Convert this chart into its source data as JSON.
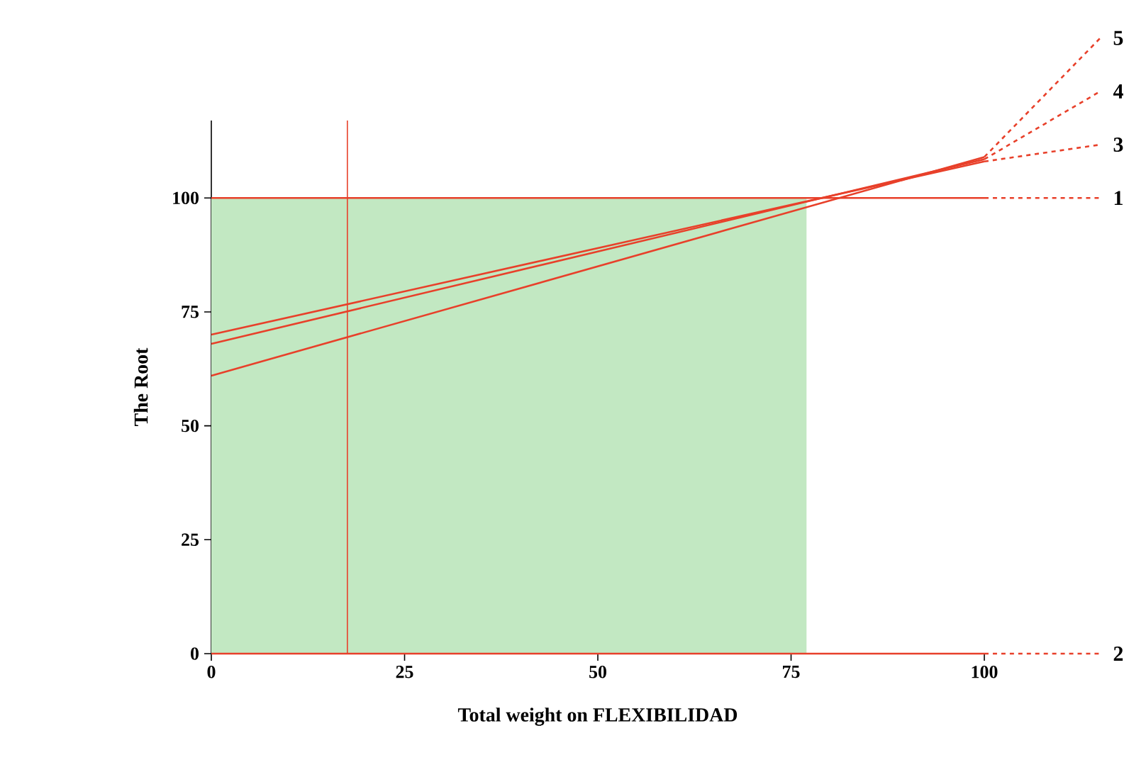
{
  "chart_data": {
    "type": "line",
    "xlabel": "Total weight on FLEXIBILIDAD",
    "ylabel": "The Root",
    "x": [
      0,
      100
    ],
    "series": [
      {
        "name": "1",
        "color": "#e8402a",
        "values": [
          100,
          100
        ]
      },
      {
        "name": "2",
        "color": "#e8402a",
        "values": [
          0,
          0
        ]
      },
      {
        "name": "3",
        "color": "#e8402a",
        "values": [
          70,
          108
        ]
      },
      {
        "name": "4",
        "color": "#e8402a",
        "values": [
          68,
          108.5
        ]
      },
      {
        "name": "5",
        "color": "#e8402a",
        "values": [
          61,
          109
        ]
      }
    ],
    "xlim": [
      0,
      100
    ],
    "ylim": [
      0,
      117
    ],
    "xticks": [
      0,
      25,
      50,
      75,
      100
    ],
    "yticks": [
      0,
      25,
      50,
      75,
      100
    ],
    "ref_lines": [
      {
        "axis": "x",
        "value": 17.6,
        "color": "#e8402a"
      }
    ],
    "bands": [
      {
        "axis": "x",
        "from": 0,
        "to": 77,
        "color": "#c2e8c2"
      }
    ],
    "grid": false,
    "legend": false,
    "marker": "none",
    "line_style": "solid"
  }
}
